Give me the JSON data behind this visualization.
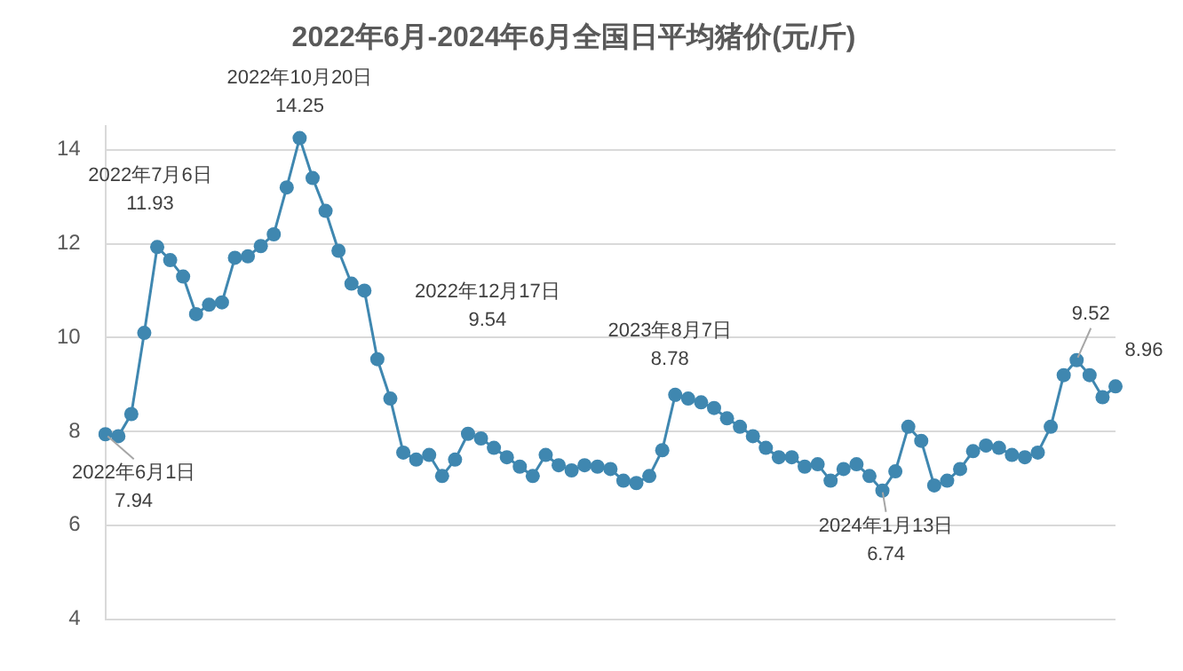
{
  "chart_data": {
    "type": "line",
    "title": "2022年6月-2024年6月全国日平均猪价(元/斤)",
    "categories": [
      null,
      null,
      null,
      null,
      null,
      null,
      null,
      null,
      null,
      null,
      null,
      null,
      null,
      null,
      null,
      null,
      null,
      null,
      null,
      null,
      null,
      null,
      null,
      null,
      null,
      null,
      null,
      null,
      null,
      null,
      null,
      null,
      null,
      null,
      null,
      null,
      null,
      null,
      null,
      null,
      null,
      null,
      null,
      null,
      null,
      null,
      null,
      null,
      null,
      null,
      null,
      null,
      null,
      null,
      null,
      null,
      null,
      null,
      null,
      null,
      null,
      null,
      null,
      null,
      null,
      null,
      null,
      null,
      null,
      null,
      null,
      null,
      null,
      null,
      null,
      null,
      null,
      null,
      null
    ],
    "series": [
      {
        "color": "#3f87b0",
        "values": [
          7.94,
          7.9,
          8.37,
          10.1,
          11.93,
          11.65,
          11.3,
          10.5,
          10.7,
          10.75,
          11.7,
          11.73,
          11.95,
          12.2,
          13.2,
          14.25,
          13.4,
          12.7,
          11.85,
          11.15,
          11.0,
          9.54,
          8.7,
          7.55,
          7.4,
          7.5,
          7.05,
          7.4,
          7.95,
          7.85,
          7.65,
          7.45,
          7.25,
          7.05,
          7.5,
          7.28,
          7.17,
          7.28,
          7.25,
          7.2,
          6.95,
          6.9,
          7.05,
          7.6,
          8.78,
          8.7,
          8.62,
          8.5,
          8.28,
          8.1,
          7.9,
          7.65,
          7.45,
          7.45,
          7.25,
          7.3,
          6.95,
          7.2,
          7.3,
          7.05,
          6.74,
          7.15,
          8.1,
          7.8,
          6.85,
          6.95,
          7.2,
          7.58,
          7.7,
          7.65,
          7.5,
          7.45,
          7.55,
          8.1,
          9.2,
          9.52,
          9.2,
          8.73,
          8.96
        ]
      }
    ],
    "ylim": [
      4,
      14.5
    ],
    "yticks": [
      4,
      6,
      8,
      10,
      12,
      14
    ],
    "tick_labels": "y",
    "grid": "y",
    "legend": false,
    "marker": "circle",
    "line_style": "solid",
    "annotations": [
      "2022年6月1日\n7.94",
      "2022年7月6日\n11.93",
      "2022年10月20日\n14.25",
      "2022年12月17日\n9.54",
      "2023年8月7日\n8.78",
      "2024年1月13日\n6.74",
      "9.52",
      "8.96"
    ]
  }
}
